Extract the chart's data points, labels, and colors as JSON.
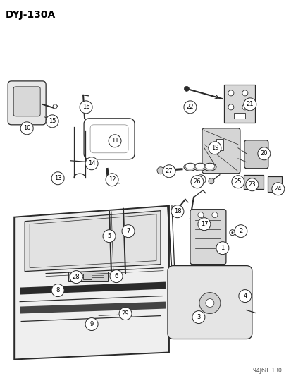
{
  "title": "DYJ-130A",
  "subtitle": "94J68  130",
  "background_color": "#ffffff",
  "lc": "#2a2a2a",
  "fig_width": 4.14,
  "fig_height": 5.33,
  "dpi": 100
}
